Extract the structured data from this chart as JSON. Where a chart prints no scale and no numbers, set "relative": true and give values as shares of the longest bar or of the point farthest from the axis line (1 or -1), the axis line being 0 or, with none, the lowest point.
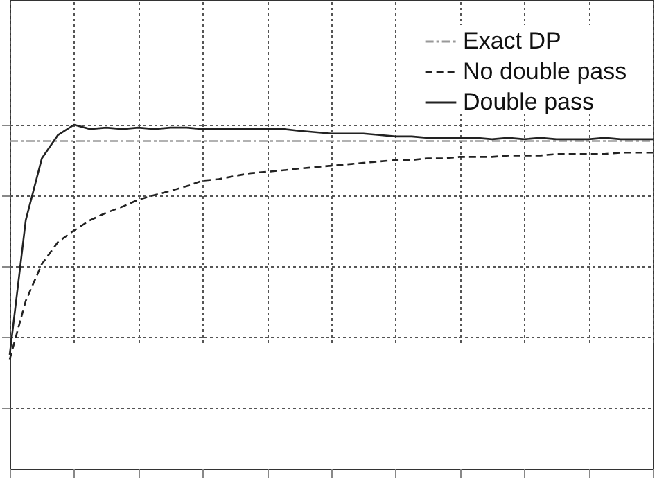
{
  "chart_data": {
    "type": "line",
    "relative": true,
    "grid": true,
    "legend": "top right",
    "categories": [
      null,
      null,
      null,
      null,
      null,
      null,
      null,
      null,
      null,
      null,
      null,
      null,
      null,
      null,
      null,
      null,
      null,
      null,
      null,
      null,
      null,
      null,
      null,
      null,
      null,
      null,
      null,
      null,
      null,
      null,
      null,
      null,
      null,
      null,
      null,
      null,
      null,
      null,
      null,
      null,
      null
    ],
    "series": [
      {
        "name": "Exact DP",
        "color": "#999999",
        "line_style": "dotted",
        "values": [
          0.954,
          0.954,
          0.954,
          0.954,
          0.954,
          0.954,
          0.954,
          0.954,
          0.954,
          0.954,
          0.954,
          0.954,
          0.954,
          0.954,
          0.954,
          0.954,
          0.954,
          0.954,
          0.954,
          0.954,
          0.954,
          0.954,
          0.954,
          0.954,
          0.954,
          0.954,
          0.954,
          0.954,
          0.954,
          0.954,
          0.954,
          0.954,
          0.954,
          0.954,
          0.954,
          0.954,
          0.954,
          0.954,
          0.954,
          0.954,
          0.954
        ]
      },
      {
        "name": "No double pass",
        "color": "#222222",
        "line_style": "dashed",
        "values": [
          0.336,
          0.502,
          0.606,
          0.668,
          0.701,
          0.73,
          0.751,
          0.768,
          0.788,
          0.801,
          0.813,
          0.826,
          0.842,
          0.846,
          0.855,
          0.863,
          0.867,
          0.871,
          0.876,
          0.88,
          0.884,
          0.888,
          0.892,
          0.896,
          0.9,
          0.9,
          0.905,
          0.905,
          0.909,
          0.909,
          0.909,
          0.913,
          0.913,
          0.913,
          0.917,
          0.917,
          0.917,
          0.917,
          0.921,
          0.921,
          0.921
        ]
      },
      {
        "name": "Double pass",
        "color": "#222222",
        "line_style": "solid",
        "values": [
          0.349,
          0.73,
          0.905,
          0.971,
          1.0,
          0.988,
          0.992,
          0.988,
          0.992,
          0.988,
          0.992,
          0.992,
          0.988,
          0.988,
          0.988,
          0.988,
          0.988,
          0.988,
          0.983,
          0.979,
          0.975,
          0.975,
          0.975,
          0.971,
          0.967,
          0.967,
          0.963,
          0.963,
          0.963,
          0.963,
          0.959,
          0.963,
          0.959,
          0.963,
          0.959,
          0.959,
          0.959,
          0.963,
          0.959,
          0.959,
          0.959
        ]
      }
    ]
  }
}
